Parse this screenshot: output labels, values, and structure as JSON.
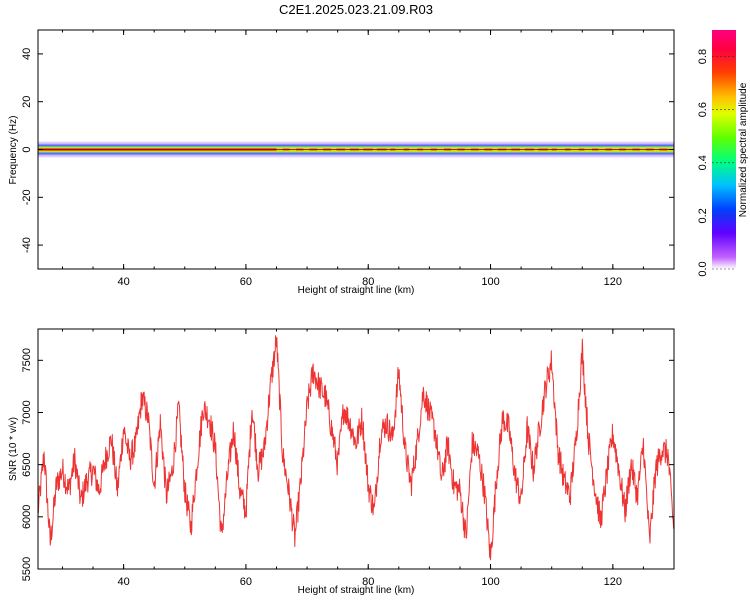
{
  "figure": {
    "title": "C2E1.2025.023.21.09.R03"
  },
  "chart_data": [
    {
      "type": "heatmap",
      "xlabel": "Height of straight line (km)",
      "ylabel": "Frequency (Hz)",
      "xlim": [
        26,
        130
      ],
      "ylim": [
        -50,
        50
      ],
      "xticks": [
        40,
        60,
        80,
        100,
        120
      ],
      "yticks": [
        -40,
        -20,
        0,
        20,
        40
      ],
      "colorbar": {
        "label": "Normalized spectral amplitude",
        "range": [
          0,
          0.9
        ],
        "ticks": [
          "0.0",
          "0.2",
          "0.4",
          "0.6",
          "0.8"
        ],
        "colormap": "rainbow-reversed (magenta high, white/violet low)"
      },
      "band": {
        "center_hz": 0,
        "note": "energy concentrated near 0 Hz; peak amplitude ~0.8-0.9 along the whole height range"
      }
    },
    {
      "type": "line",
      "xlabel": "Height of straight line (km)",
      "ylabel": "SNR (10 * v/v)",
      "xlim": [
        26,
        130
      ],
      "ylim": [
        5500,
        7800
      ],
      "xticks": [
        40,
        60,
        80,
        100,
        120
      ],
      "yticks": [
        5500,
        6000,
        6500,
        7000,
        7500
      ],
      "color": "#ee3333",
      "series": [
        {
          "x": [
            26,
            27,
            28,
            29,
            30,
            31,
            32,
            33,
            34,
            35,
            36,
            37,
            38,
            39,
            40,
            41,
            42,
            43,
            44,
            45,
            46,
            47,
            48,
            49,
            50,
            51,
            52,
            53,
            54,
            55,
            56,
            57,
            58,
            59,
            60,
            61,
            62,
            63,
            64,
            65,
            66,
            67,
            68,
            69,
            70,
            71,
            72,
            73,
            74,
            75,
            76,
            77,
            78,
            79,
            80,
            81,
            82,
            83,
            84,
            85,
            86,
            87,
            88,
            89,
            90,
            91,
            92,
            93,
            94,
            95,
            96,
            97,
            98,
            99,
            100,
            101,
            102,
            103,
            104,
            105,
            106,
            107,
            108,
            109,
            110,
            111,
            112,
            113,
            114,
            115,
            116,
            117,
            118,
            119,
            120,
            121,
            122,
            123,
            124,
            125,
            126,
            127,
            128,
            129,
            130
          ],
          "values": [
            6050,
            6600,
            5750,
            6300,
            6450,
            6250,
            6550,
            6150,
            6350,
            6450,
            6250,
            6550,
            6750,
            6250,
            6850,
            6550,
            6700,
            7150,
            6950,
            6300,
            6900,
            6200,
            6450,
            7050,
            6250,
            5900,
            6500,
            7050,
            6950,
            6650,
            5800,
            6400,
            6850,
            6250,
            6050,
            7050,
            6450,
            6650,
            7250,
            7700,
            6600,
            6250,
            5800,
            6350,
            7050,
            7400,
            7250,
            7150,
            6850,
            6500,
            7050,
            6900,
            6700,
            6950,
            6300,
            6050,
            6800,
            6900,
            6750,
            7400,
            6650,
            6300,
            6700,
            7200,
            7000,
            6800,
            6350,
            6700,
            6300,
            6250,
            5800,
            6700,
            6600,
            6250,
            5600,
            6400,
            6950,
            6850,
            6400,
            6150,
            6850,
            6450,
            6850,
            7250,
            7500,
            6650,
            6350,
            6200,
            6750,
            7600,
            6750,
            6300,
            5950,
            6400,
            6800,
            6450,
            6050,
            6500,
            6200,
            6700,
            5750,
            6450,
            6650,
            6600,
            5850
          ]
        }
      ]
    }
  ]
}
